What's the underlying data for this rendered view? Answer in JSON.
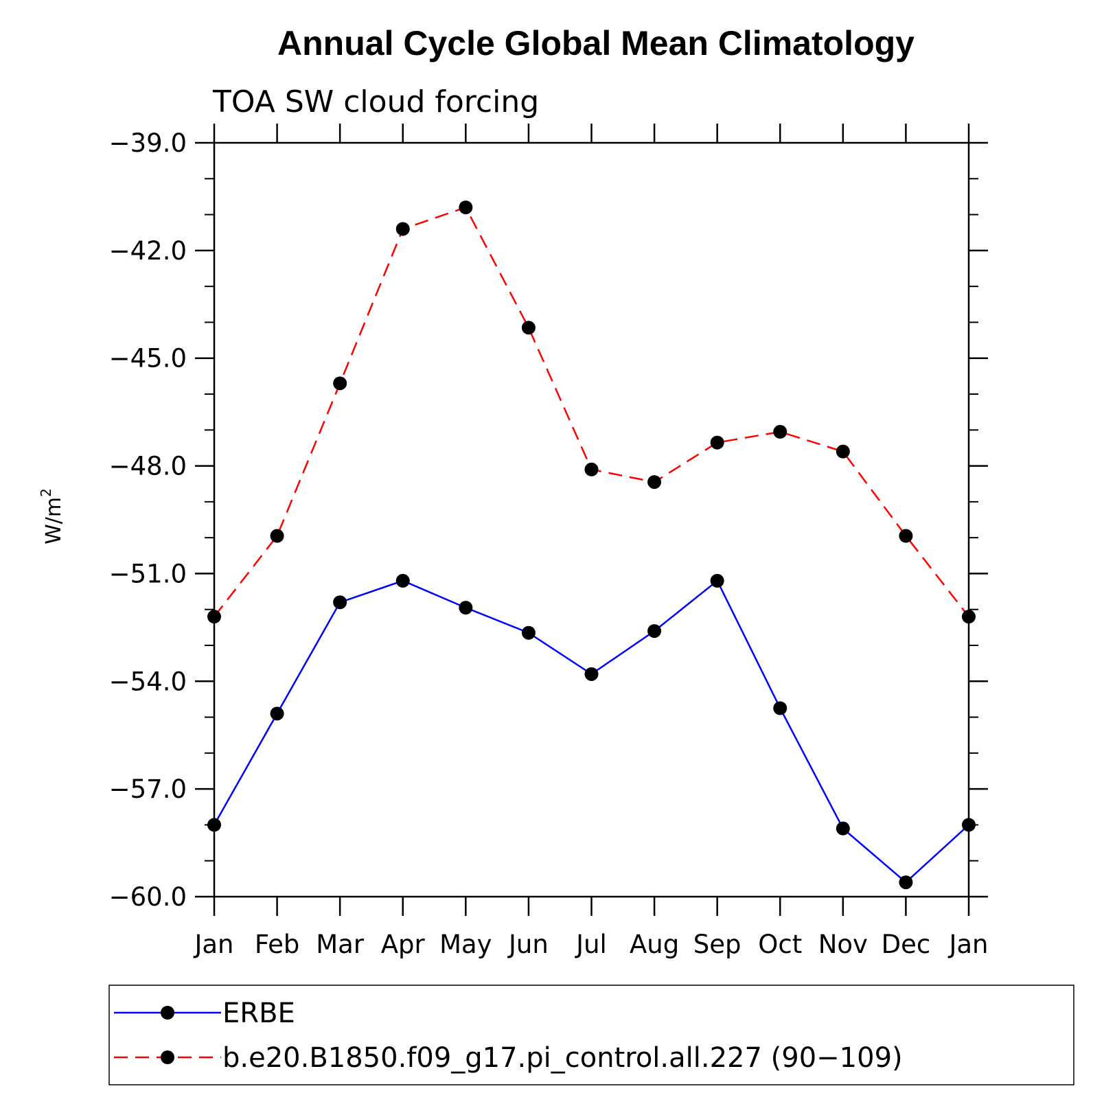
{
  "chart_data": {
    "type": "line",
    "title": "Annual Cycle Global Mean Climatology",
    "subtitle": "TOA SW cloud forcing",
    "xlabel": "",
    "ylabel": "W/m",
    "ylabel_superscript": "2",
    "categories": [
      "Jan",
      "Feb",
      "Mar",
      "Apr",
      "May",
      "Jun",
      "Jul",
      "Aug",
      "Sep",
      "Oct",
      "Nov",
      "Dec",
      "Jan"
    ],
    "ylim": [
      -60.0,
      -39.0
    ],
    "yticks": [
      -39.0,
      -42.0,
      -45.0,
      -48.0,
      -51.0,
      -54.0,
      -57.0,
      -60.0
    ],
    "ytick_labels": [
      "−39.0",
      "−42.0",
      "−45.0",
      "−48.0",
      "−51.0",
      "−54.0",
      "−57.0",
      "−60.0"
    ],
    "yminor_step": 1.0,
    "grid": false,
    "legend_position": "bottom",
    "series": [
      {
        "name": "ERBE",
        "color": "#0000ff",
        "line_style": "solid",
        "marker": "filled-circle",
        "values": [
          -58.0,
          -54.9,
          -51.8,
          -51.2,
          -51.95,
          -52.65,
          -53.8,
          -52.6,
          -51.2,
          -54.75,
          -58.1,
          -59.6,
          -58.0
        ]
      },
      {
        "name": "b.e20.B1850.f09_g17.pi_control.all.227 (90−109)",
        "color": "#ff0000",
        "line_style": "dashed",
        "marker": "filled-circle",
        "values": [
          -52.2,
          -49.95,
          -45.7,
          -41.4,
          -40.8,
          -44.15,
          -48.1,
          -48.45,
          -47.35,
          -47.05,
          -47.6,
          -49.95,
          -52.2
        ]
      }
    ]
  }
}
